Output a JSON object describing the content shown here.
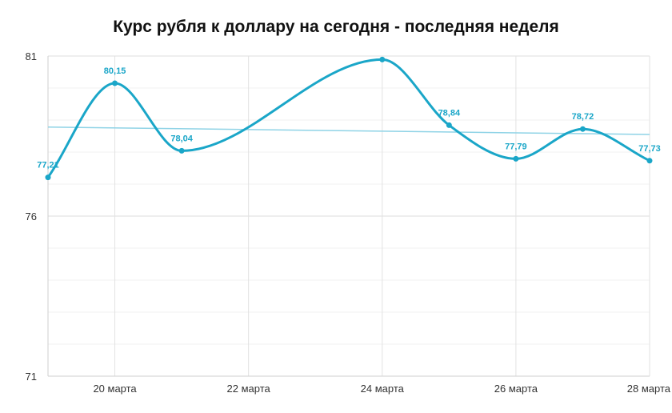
{
  "chart_data": {
    "type": "line",
    "title": "Курс рубля к доллару на сегодня - последняя неделя",
    "xlabel": "",
    "ylabel": "",
    "grid": true,
    "legend": "none",
    "ylim": [
      71,
      81
    ],
    "yticks": [
      {
        "value": 71,
        "label": "71"
      },
      {
        "value": 76,
        "label": "76"
      },
      {
        "value": 81,
        "label": "81"
      }
    ],
    "xticks": [
      {
        "day": 20,
        "label": "20 марта"
      },
      {
        "day": 22,
        "label": "22 марта"
      },
      {
        "day": 24,
        "label": "24 марта"
      },
      {
        "day": 26,
        "label": "26 марта"
      },
      {
        "day": 28,
        "label": "28 марта"
      }
    ],
    "series": [
      {
        "color": "#1aa6c8",
        "points": [
          {
            "day": 19,
            "value": 77.21,
            "label": "77,21"
          },
          {
            "day": 20,
            "value": 80.15,
            "label": "80,15"
          },
          {
            "day": 21,
            "value": 78.04,
            "label": "78,04"
          },
          {
            "day": 24,
            "value": 80.89,
            "label": ""
          },
          {
            "day": 25,
            "value": 78.84,
            "label": "78,84"
          },
          {
            "day": 26,
            "value": 77.79,
            "label": "77,79"
          },
          {
            "day": 27,
            "value": 78.72,
            "label": "78,72"
          },
          {
            "day": 28,
            "value": 77.73,
            "label": "77,73"
          }
        ]
      }
    ],
    "trendline": {
      "color": "#8fd3e6",
      "start": {
        "day": 19,
        "value": 78.78
      },
      "end": {
        "day": 28,
        "value": 78.55
      }
    }
  }
}
